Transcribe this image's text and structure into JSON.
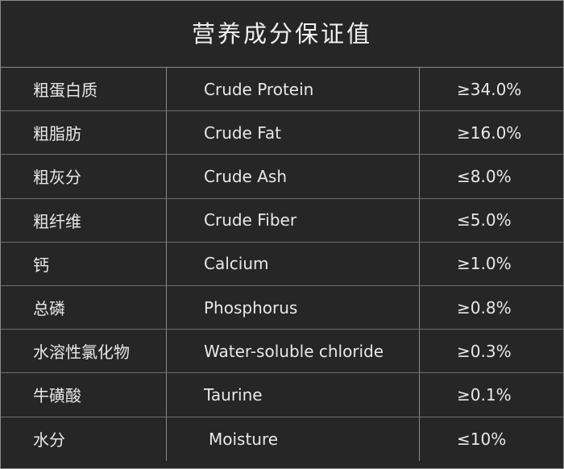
{
  "title": "营养成分保证值",
  "rows": [
    {
      "cn": "粗蛋白质",
      "en": "Crude Protein",
      "value": "≥34.0%"
    },
    {
      "cn": "粗脂肪",
      "en": "Crude Fat",
      "value": "≥16.0%"
    },
    {
      "cn": "粗灰分",
      "en": "Crude Ash",
      "value": "≤8.0%"
    },
    {
      "cn": "粗纤维",
      "en": "Crude Fiber",
      "value": "≤5.0%"
    },
    {
      "cn": "钙",
      "en": "Calcium",
      "value": "≥1.0%"
    },
    {
      "cn": "总磷",
      "en": "Phosphorus",
      "value": "≥0.8%"
    },
    {
      "cn": "水溶性氯化物",
      "en": "Water-soluble chloride",
      "value": "≥0.3%"
    },
    {
      "cn": "牛磺酸",
      "en": "Taurine",
      "value": "≥0.1%"
    },
    {
      "cn": "水分",
      "en": "Moisture",
      "value": "≤10%"
    }
  ]
}
